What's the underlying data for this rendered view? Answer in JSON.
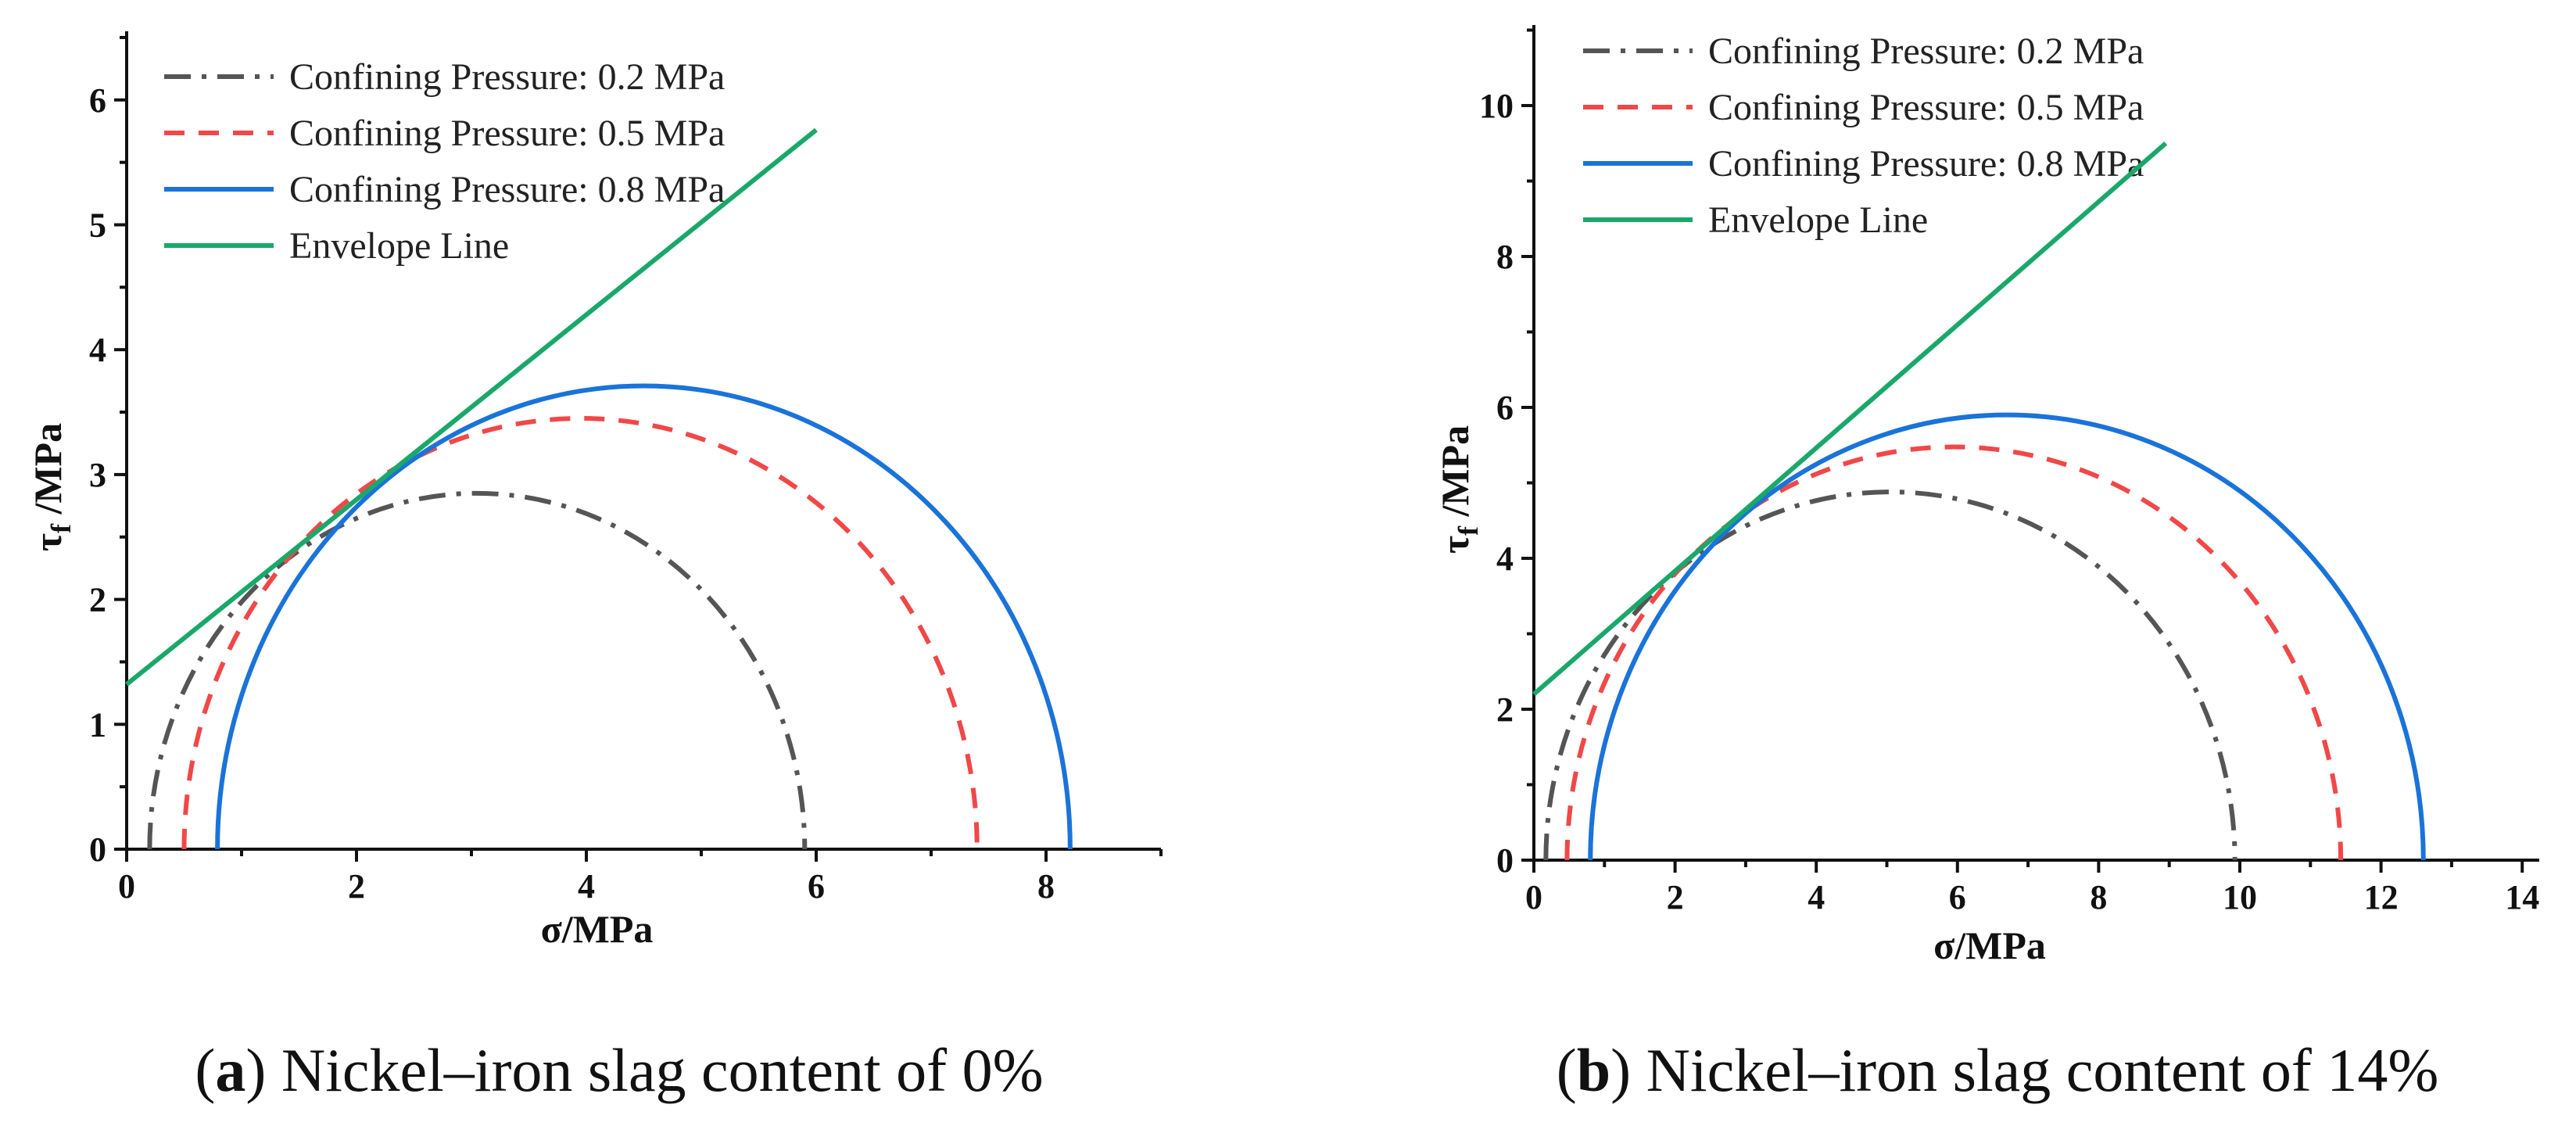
{
  "chart_data": [
    {
      "type": "line",
      "panel": "a",
      "xlim": [
        0,
        9
      ],
      "ylim": [
        0,
        6.5
      ],
      "x_ticks": [
        0,
        2,
        4,
        6,
        8
      ],
      "y_ticks": [
        0,
        1,
        2,
        3,
        4,
        5,
        6
      ],
      "xlabel": "σ/MPa",
      "ylabel": "τ",
      "ylabel_sub": "f",
      "ylabel_unit": " /MPa",
      "caption_letter": "a",
      "caption_text": "Nickel–iron slag content of 0%",
      "legend_position": "top-left",
      "series": [
        {
          "name": "Confining Pressure: 0.2 MPa",
          "kind": "circle",
          "center": 3.05,
          "radius": 2.85,
          "color": "#555555",
          "dash": "dashdot"
        },
        {
          "name": "Confining Pressure: 0.5 MPa",
          "kind": "circle",
          "center": 3.95,
          "radius": 3.45,
          "color": "#f04848",
          "dash": "dashed"
        },
        {
          "name": "Confining Pressure: 0.8 MPa",
          "kind": "circle",
          "center": 4.5,
          "radius": 3.71,
          "color": "#1a73d9",
          "dash": "solid"
        },
        {
          "name": "Envelope Line",
          "kind": "line",
          "x": [
            0,
            6
          ],
          "y": [
            1.32,
            5.76
          ],
          "color": "#1aa86a",
          "dash": "solid"
        }
      ]
    },
    {
      "type": "line",
      "panel": "b",
      "xlim": [
        0,
        14
      ],
      "ylim": [
        0,
        11
      ],
      "x_ticks": [
        0,
        2,
        4,
        6,
        8,
        10,
        12,
        14
      ],
      "y_ticks": [
        0,
        2,
        4,
        6,
        8,
        10
      ],
      "xlabel": "σ/MPa",
      "ylabel": "τ",
      "ylabel_sub": "f",
      "ylabel_unit": " /MPa",
      "caption_letter": "b",
      "caption_text": "Nickel–iron slag content of 14%",
      "legend_position": "top-left",
      "series": [
        {
          "name": "Confining Pressure: 0.2 MPa",
          "kind": "circle",
          "center": 5.05,
          "radius": 4.88,
          "color": "#555555",
          "dash": "dashdot"
        },
        {
          "name": "Confining Pressure: 0.5 MPa",
          "kind": "circle",
          "center": 5.95,
          "radius": 5.48,
          "color": "#f04848",
          "dash": "dashed"
        },
        {
          "name": "Confining Pressure: 0.8 MPa",
          "kind": "circle",
          "center": 6.7,
          "radius": 5.9,
          "color": "#1a73d9",
          "dash": "solid"
        },
        {
          "name": "Envelope Line",
          "kind": "line",
          "x": [
            0,
            8.95
          ],
          "y": [
            2.2,
            9.5
          ],
          "color": "#1aa86a",
          "dash": "solid"
        }
      ]
    }
  ]
}
